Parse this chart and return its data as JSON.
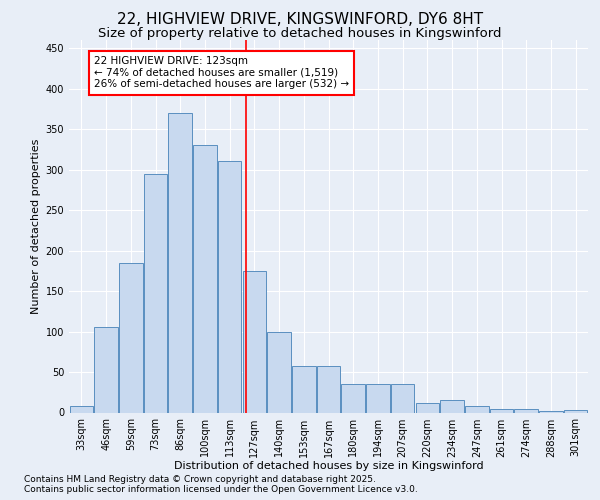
{
  "title": "22, HIGHVIEW DRIVE, KINGSWINFORD, DY6 8HT",
  "subtitle": "Size of property relative to detached houses in Kingswinford",
  "xlabel": "Distribution of detached houses by size in Kingswinford",
  "ylabel": "Number of detached properties",
  "categories": [
    "33sqm",
    "46sqm",
    "59sqm",
    "73sqm",
    "86sqm",
    "100sqm",
    "113sqm",
    "127sqm",
    "140sqm",
    "153sqm",
    "167sqm",
    "180sqm",
    "194sqm",
    "207sqm",
    "220sqm",
    "234sqm",
    "247sqm",
    "261sqm",
    "274sqm",
    "288sqm",
    "301sqm"
  ],
  "values": [
    8,
    105,
    185,
    295,
    370,
    330,
    310,
    175,
    100,
    58,
    58,
    35,
    35,
    35,
    12,
    15,
    8,
    4,
    4,
    2,
    3
  ],
  "bar_color": "#c8d9ef",
  "bar_edge_color": "#5a8fc0",
  "vline_color": "red",
  "annotation_title": "22 HIGHVIEW DRIVE: 123sqm",
  "annotation_line2": "← 74% of detached houses are smaller (1,519)",
  "annotation_line3": "26% of semi-detached houses are larger (532) →",
  "annotation_box_color": "red",
  "annotation_fill": "white",
  "ylim": [
    0,
    460
  ],
  "yticks": [
    0,
    50,
    100,
    150,
    200,
    250,
    300,
    350,
    400,
    450
  ],
  "footer1": "Contains HM Land Registry data © Crown copyright and database right 2025.",
  "footer2": "Contains public sector information licensed under the Open Government Licence v3.0.",
  "background_color": "#e8eef7",
  "plot_background": "#e8eef7",
  "grid_color": "#d0d8e8",
  "title_fontsize": 11,
  "subtitle_fontsize": 9.5,
  "label_fontsize": 8,
  "tick_fontsize": 7,
  "annotation_fontsize": 7.5,
  "footer_fontsize": 6.5
}
